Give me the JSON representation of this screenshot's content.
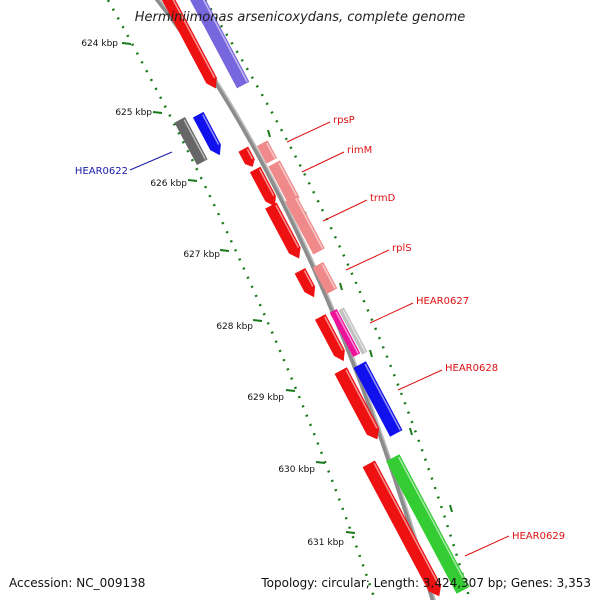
{
  "title": "Herminiimonas arsenicoxydans, complete genome",
  "footer": {
    "accession": "Accession: NC_009138",
    "summary": "Topology: circular; Length: 3,424,307 bp; Genes: 3,353"
  },
  "scale": {
    "unit": "kbp",
    "ticks": [
      "624 kbp",
      "625 kbp",
      "626 kbp",
      "627 kbp",
      "628 kbp",
      "629 kbp",
      "630 kbp",
      "631 kbp"
    ],
    "tick_color": "#1a7a1a"
  },
  "colors": {
    "backbone": "#8c8c8c",
    "red": "#ee1111",
    "pink": "#f08a8a",
    "blue": "#1111ee",
    "purple": "#7766dd",
    "gray": "#666666",
    "magenta": "#ee1199",
    "lightgray": "#c0c0c0",
    "green": "#33cc33",
    "lightgreen": "#88ee88",
    "red_label": "#dd1111",
    "blue_label": "#1a1aaa"
  },
  "gene_labels": [
    {
      "text": "rpsP",
      "color": "red"
    },
    {
      "text": "rimM",
      "color": "red"
    },
    {
      "text": "trmD",
      "color": "red"
    },
    {
      "text": "rplS",
      "color": "red"
    },
    {
      "text": "HEAR0627",
      "color": "red"
    },
    {
      "text": "HEAR0628",
      "color": "red"
    },
    {
      "text": "HEAR0629",
      "color": "red"
    },
    {
      "text": "HEAR0622",
      "color": "blue"
    }
  ]
}
